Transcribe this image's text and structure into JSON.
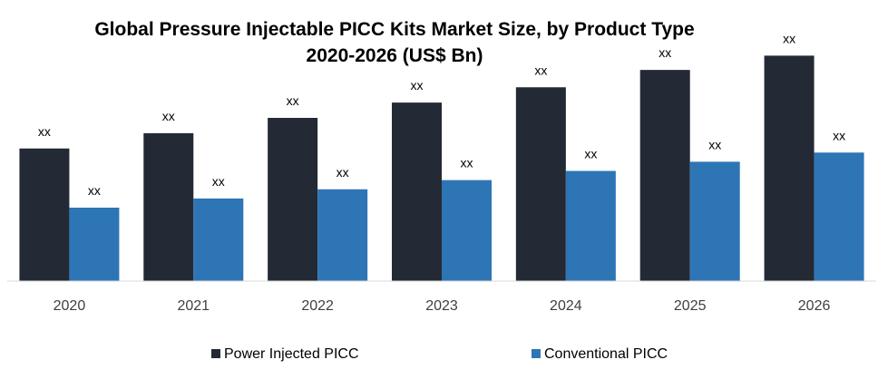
{
  "chart_data": {
    "type": "bar",
    "title_line1": "Global Pressure Injectable PICC Kits Market  Size, by Product Type",
    "title_line2": "2020-2026 (US$ Bn)",
    "categories": [
      "2020",
      "2021",
      "2022",
      "2023",
      "2024",
      "2025",
      "2026"
    ],
    "series": [
      {
        "name": "Power Injected PICC",
        "color": "#232a35",
        "values": [
          13,
          14.5,
          16,
          17.5,
          19,
          20.7,
          22.1
        ],
        "labels": [
          "xx",
          "xx",
          "xx",
          "xx",
          "xx",
          "xx",
          "xx"
        ]
      },
      {
        "name": "Conventional PICC",
        "color": "#2e75b6",
        "values": [
          7.2,
          8.1,
          9,
          9.9,
          10.8,
          11.7,
          12.6
        ],
        "labels": [
          "xx",
          "xx",
          "xx",
          "xx",
          "xx",
          "xx",
          "xx"
        ]
      }
    ],
    "ylim": [
      0,
      24
    ],
    "xlabel": "",
    "ylabel": "",
    "grid": false,
    "legend": "bottom-center"
  }
}
